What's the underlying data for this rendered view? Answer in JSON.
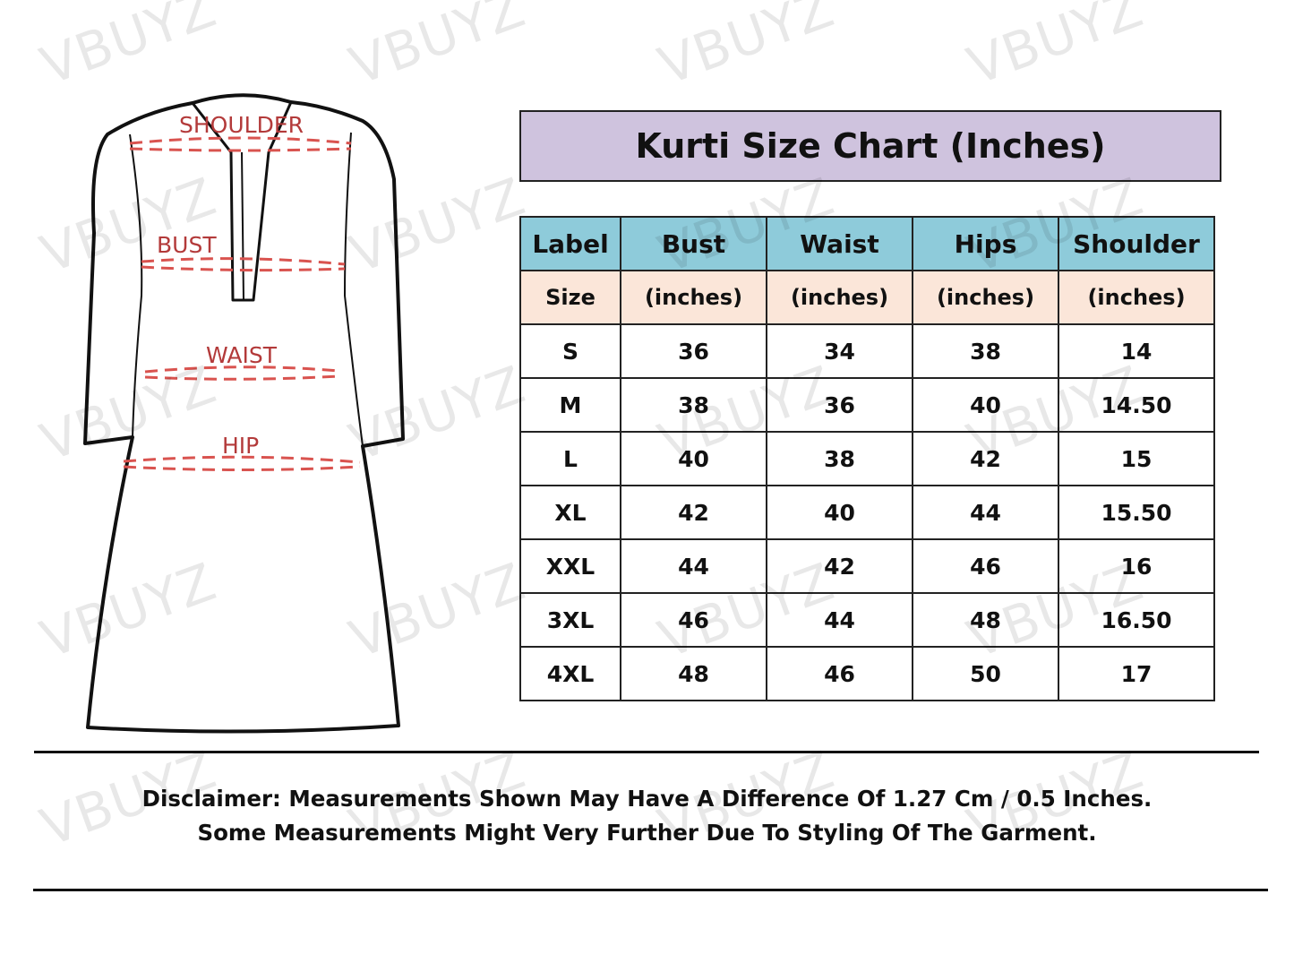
{
  "watermark": "VBUYZ",
  "figure": {
    "labels": [
      "SHOULDER",
      "BUST",
      "WAIST",
      "HIP"
    ],
    "measure_line_color": "#d9534f"
  },
  "title": "Kurti Size Chart (Inches)",
  "colors": {
    "title_bg": "#cfc3de",
    "header_bg": "#8ecbda",
    "subheader_bg": "#fbe6d9"
  },
  "table": {
    "header": [
      "Label",
      "Bust",
      "Waist",
      "Hips",
      "Shoulder"
    ],
    "subheader": [
      "Size",
      "(inches)",
      "(inches)",
      "(inches)",
      "(inches)"
    ],
    "rows": [
      [
        "S",
        "36",
        "34",
        "38",
        "14"
      ],
      [
        "M",
        "38",
        "36",
        "40",
        "14.50"
      ],
      [
        "L",
        "40",
        "38",
        "42",
        "15"
      ],
      [
        "XL",
        "42",
        "40",
        "44",
        "15.50"
      ],
      [
        "XXL",
        "44",
        "42",
        "46",
        "16"
      ],
      [
        "3XL",
        "46",
        "44",
        "48",
        "16.50"
      ],
      [
        "4XL",
        "48",
        "46",
        "50",
        "17"
      ]
    ]
  },
  "disclaimer": {
    "line1": "Disclaimer: Measurements Shown May Have A Difference Of 1.27 Cm / 0.5 Inches.",
    "line2": "Some Measurements Might Very Further Due To Styling Of The Garment."
  }
}
